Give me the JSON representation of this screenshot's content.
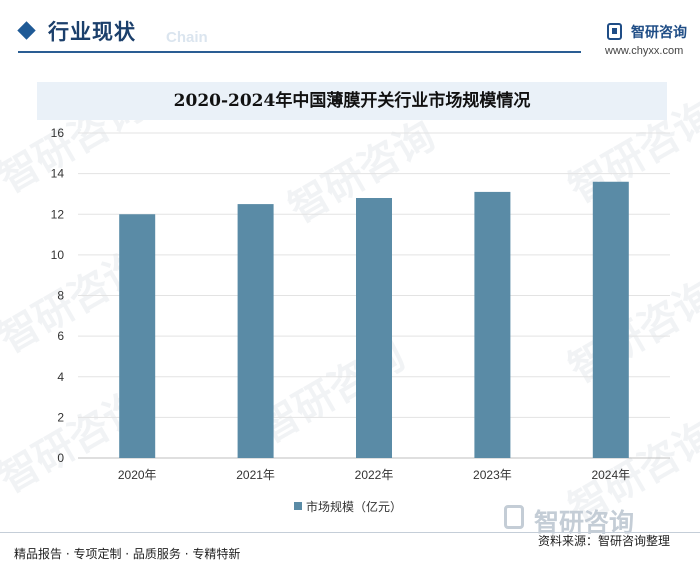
{
  "header": {
    "section_title": "行业现状",
    "section_subtitle_en": "Chain"
  },
  "logo": {
    "name": "智研咨询",
    "url": "www.chyxx.com"
  },
  "watermark_text": "智研咨询",
  "chart_data": {
    "type": "bar",
    "title": "2020-2024年中国薄膜开关行业市场规模情况",
    "categories": [
      "2020年",
      "2021年",
      "2022年",
      "2023年",
      "2024年"
    ],
    "series": [
      {
        "name": "市场规模（亿元）",
        "values": [
          12.0,
          12.5,
          12.8,
          13.1,
          13.6
        ],
        "color": "#5a8ba6"
      }
    ],
    "xlabel": "",
    "ylabel": "",
    "ylim": [
      0,
      16
    ],
    "yticks": [
      0,
      2,
      4,
      6,
      8,
      10,
      12,
      14,
      16
    ],
    "grid": true,
    "legend": "bottom-center"
  },
  "footer": {
    "tags": "精品报告 · 专项定制 · 品质服务 · 专精特新",
    "brand": "智研咨询",
    "source": "资料来源：智研咨询整理"
  }
}
